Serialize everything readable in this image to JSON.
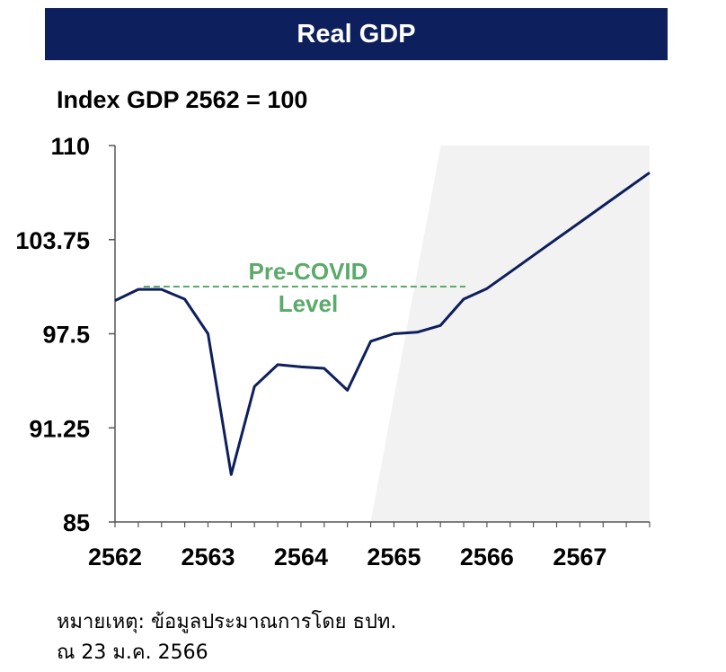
{
  "header": {
    "title": "Real GDP"
  },
  "chart_data": {
    "type": "line",
    "title": "Real GDP",
    "ylabel": "Index GDP 2562 = 100",
    "xlabel": "",
    "ylim": [
      85,
      110
    ],
    "yticks": [
      "110",
      "103.75",
      "97.5",
      "91.25",
      "85"
    ],
    "ytick_values": [
      110,
      103.75,
      97.5,
      91.25,
      85
    ],
    "xticks": [
      "2562",
      "2563",
      "2564",
      "2565",
      "2566",
      "2567"
    ],
    "xlim": [
      2562,
      2567.75
    ],
    "series": [
      {
        "name": "",
        "color": "#0d1f5c",
        "x": [
          2562.0,
          2562.25,
          2562.5,
          2562.75,
          2563.0,
          2563.25,
          2563.5,
          2563.75,
          2564.0,
          2564.25,
          2564.5,
          2564.75,
          2565.0,
          2565.25,
          2565.5,
          2565.75,
          2566.0,
          2566.25,
          2566.5,
          2566.75,
          2567.0,
          2567.25,
          2567.5,
          2567.75
        ],
        "values": [
          99.7,
          100.45,
          100.45,
          99.8,
          97.5,
          88.15,
          94.0,
          95.45,
          95.3,
          95.2,
          93.75,
          97.0,
          97.5,
          97.6,
          98.05,
          99.8,
          100.5,
          101.6,
          102.7,
          103.8,
          104.9,
          106.0,
          107.1,
          108.2
        ]
      }
    ],
    "reference_line": {
      "label_line1": "Pre-COVID",
      "label_line2": "Level",
      "value": 100.45,
      "x_start": 2562.25,
      "x_end": 2565.75,
      "color": "#5aaa6a"
    },
    "shaded_region": {
      "description": "forecast",
      "x_start": 2564.75,
      "color": "#f2f2f2"
    }
  },
  "notes": {
    "line1": "หมายเหตุ: ข้อมูลประมาณการโดย ธปท.",
    "line2": "ณ 23 ม.ค. 2566"
  }
}
